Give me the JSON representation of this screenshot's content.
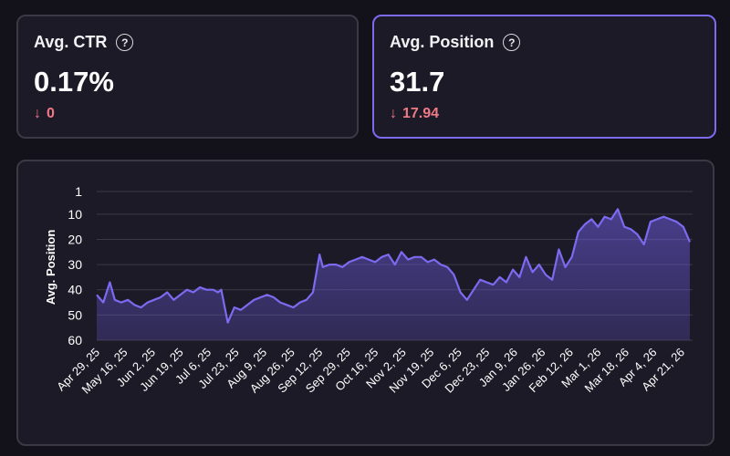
{
  "metrics": [
    {
      "title": "Avg. CTR",
      "help": "?",
      "value": "0.17%",
      "delta_arrow": "↓",
      "delta": "0",
      "active": false
    },
    {
      "title": "Avg. Position",
      "help": "?",
      "value": "31.7",
      "delta_arrow": "↓",
      "delta": "17.94",
      "active": true
    }
  ],
  "colors": {
    "background": "#131119",
    "card": "#1c1a26",
    "border": "#3b3944",
    "accent": "#7c6af0",
    "line": "#7c6af0",
    "negative": "#f07a86"
  },
  "chart_data": {
    "type": "area",
    "ylabel": "Avg. Position",
    "xlabel": "",
    "y_inverted": true,
    "ylim": [
      1,
      60
    ],
    "yticks": [
      1,
      10,
      20,
      30,
      40,
      50,
      60
    ],
    "grid": true,
    "x_tick_labels": [
      "Apr 29, 25",
      "May 16, 25",
      "Jun 2, 25",
      "Jun 19, 25",
      "Jul 6, 25",
      "Jul 23, 25",
      "Aug 9, 25",
      "Aug 26, 25",
      "Sep 12, 25",
      "Sep 29, 25",
      "Oct 16, 25",
      "Nov 2, 25",
      "Nov 19, 25",
      "Dec 6, 25",
      "Dec 23, 25",
      "Jan 9, 26",
      "Jan 26, 26",
      "Feb 12, 26",
      "Mar 1, 26",
      "Mar 18, 26",
      "Apr 4, 26",
      "Apr 21, 26"
    ],
    "x": [
      "2025-04-29",
      "2025-05-03",
      "2025-05-07",
      "2025-05-10",
      "2025-05-14",
      "2025-05-18",
      "2025-05-22",
      "2025-05-26",
      "2025-05-30",
      "2025-06-03",
      "2025-06-07",
      "2025-06-11",
      "2025-06-15",
      "2025-06-19",
      "2025-06-23",
      "2025-06-27",
      "2025-07-01",
      "2025-07-05",
      "2025-07-09",
      "2025-07-12",
      "2025-07-14",
      "2025-07-18",
      "2025-07-22",
      "2025-07-26",
      "2025-07-30",
      "2025-08-03",
      "2025-08-07",
      "2025-08-11",
      "2025-08-15",
      "2025-08-19",
      "2025-08-23",
      "2025-08-27",
      "2025-08-31",
      "2025-09-04",
      "2025-09-08",
      "2025-09-12",
      "2025-09-14",
      "2025-09-18",
      "2025-09-22",
      "2025-09-26",
      "2025-09-30",
      "2025-10-04",
      "2025-10-08",
      "2025-10-12",
      "2025-10-16",
      "2025-10-20",
      "2025-10-24",
      "2025-10-28",
      "2025-11-01",
      "2025-11-05",
      "2025-11-09",
      "2025-11-13",
      "2025-11-17",
      "2025-11-21",
      "2025-11-25",
      "2025-11-29",
      "2025-12-03",
      "2025-12-07",
      "2025-12-11",
      "2025-12-15",
      "2025-12-19",
      "2025-12-23",
      "2025-12-27",
      "2025-12-31",
      "2026-01-04",
      "2026-01-08",
      "2026-01-12",
      "2026-01-16",
      "2026-01-20",
      "2026-01-24",
      "2026-01-28",
      "2026-02-01",
      "2026-02-05",
      "2026-02-09",
      "2026-02-13",
      "2026-02-17",
      "2026-02-21",
      "2026-02-25",
      "2026-03-01",
      "2026-03-05",
      "2026-03-09",
      "2026-03-13",
      "2026-03-17",
      "2026-03-21",
      "2026-03-25",
      "2026-03-29",
      "2026-04-02",
      "2026-04-06",
      "2026-04-10",
      "2026-04-14",
      "2026-04-18",
      "2026-04-22",
      "2026-04-26"
    ],
    "values": [
      42,
      45,
      37,
      44,
      45,
      44,
      46,
      47,
      45,
      44,
      43,
      41,
      44,
      42,
      40,
      41,
      39,
      40,
      40,
      41,
      40,
      53,
      47,
      48,
      46,
      44,
      43,
      42,
      43,
      45,
      46,
      47,
      45,
      44,
      41,
      26,
      31,
      30,
      30,
      31,
      29,
      28,
      27,
      28,
      29,
      27,
      26,
      30,
      25,
      28,
      27,
      27,
      29,
      28,
      30,
      31,
      34,
      41,
      44,
      40,
      36,
      37,
      38,
      35,
      37,
      32,
      35,
      27,
      33,
      30,
      34,
      36,
      24,
      31,
      27,
      17,
      14,
      12,
      15,
      11,
      12,
      8,
      15,
      16,
      18,
      22,
      13,
      12,
      11,
      12,
      13,
      15,
      21
    ]
  }
}
